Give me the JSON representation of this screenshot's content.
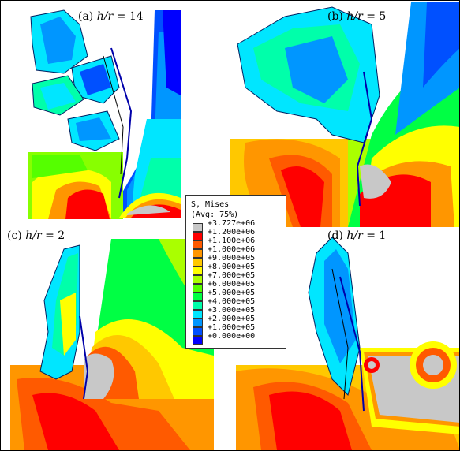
{
  "panels": [
    {
      "id": "a",
      "prefix": "(a) ",
      "var": "h/r",
      "eq": " = ",
      "val": "14"
    },
    {
      "id": "b",
      "prefix": "(b) ",
      "var": "h/r",
      "eq": " = ",
      "val": "5"
    },
    {
      "id": "c",
      "prefix": "(c) ",
      "var": "h/r",
      "eq": " = ",
      "val": "2"
    },
    {
      "id": "d",
      "prefix": "(d) ",
      "var": "h/r",
      "eq": " = ",
      "val": "1"
    }
  ],
  "legend": {
    "title1": "S, Mises",
    "title2": "(Avg: 75%)",
    "values": [
      "+3.727e+06",
      "+1.200e+06",
      "+1.100e+06",
      "+1.000e+06",
      "+9.000e+05",
      "+8.000e+05",
      "+7.000e+05",
      "+6.000e+05",
      "+5.000e+05",
      "+4.000e+05",
      "+3.000e+05",
      "+2.000e+05",
      "+1.000e+05",
      "+0.000e+00"
    ],
    "colors": [
      "#c8c8c8",
      "#ff0000",
      "#ff5a00",
      "#ff9600",
      "#ffc800",
      "#ffff00",
      "#aaff00",
      "#55ff00",
      "#00ff44",
      "#00ffaa",
      "#00e6ff",
      "#0096ff",
      "#0050ff",
      "#0000ff"
    ]
  }
}
